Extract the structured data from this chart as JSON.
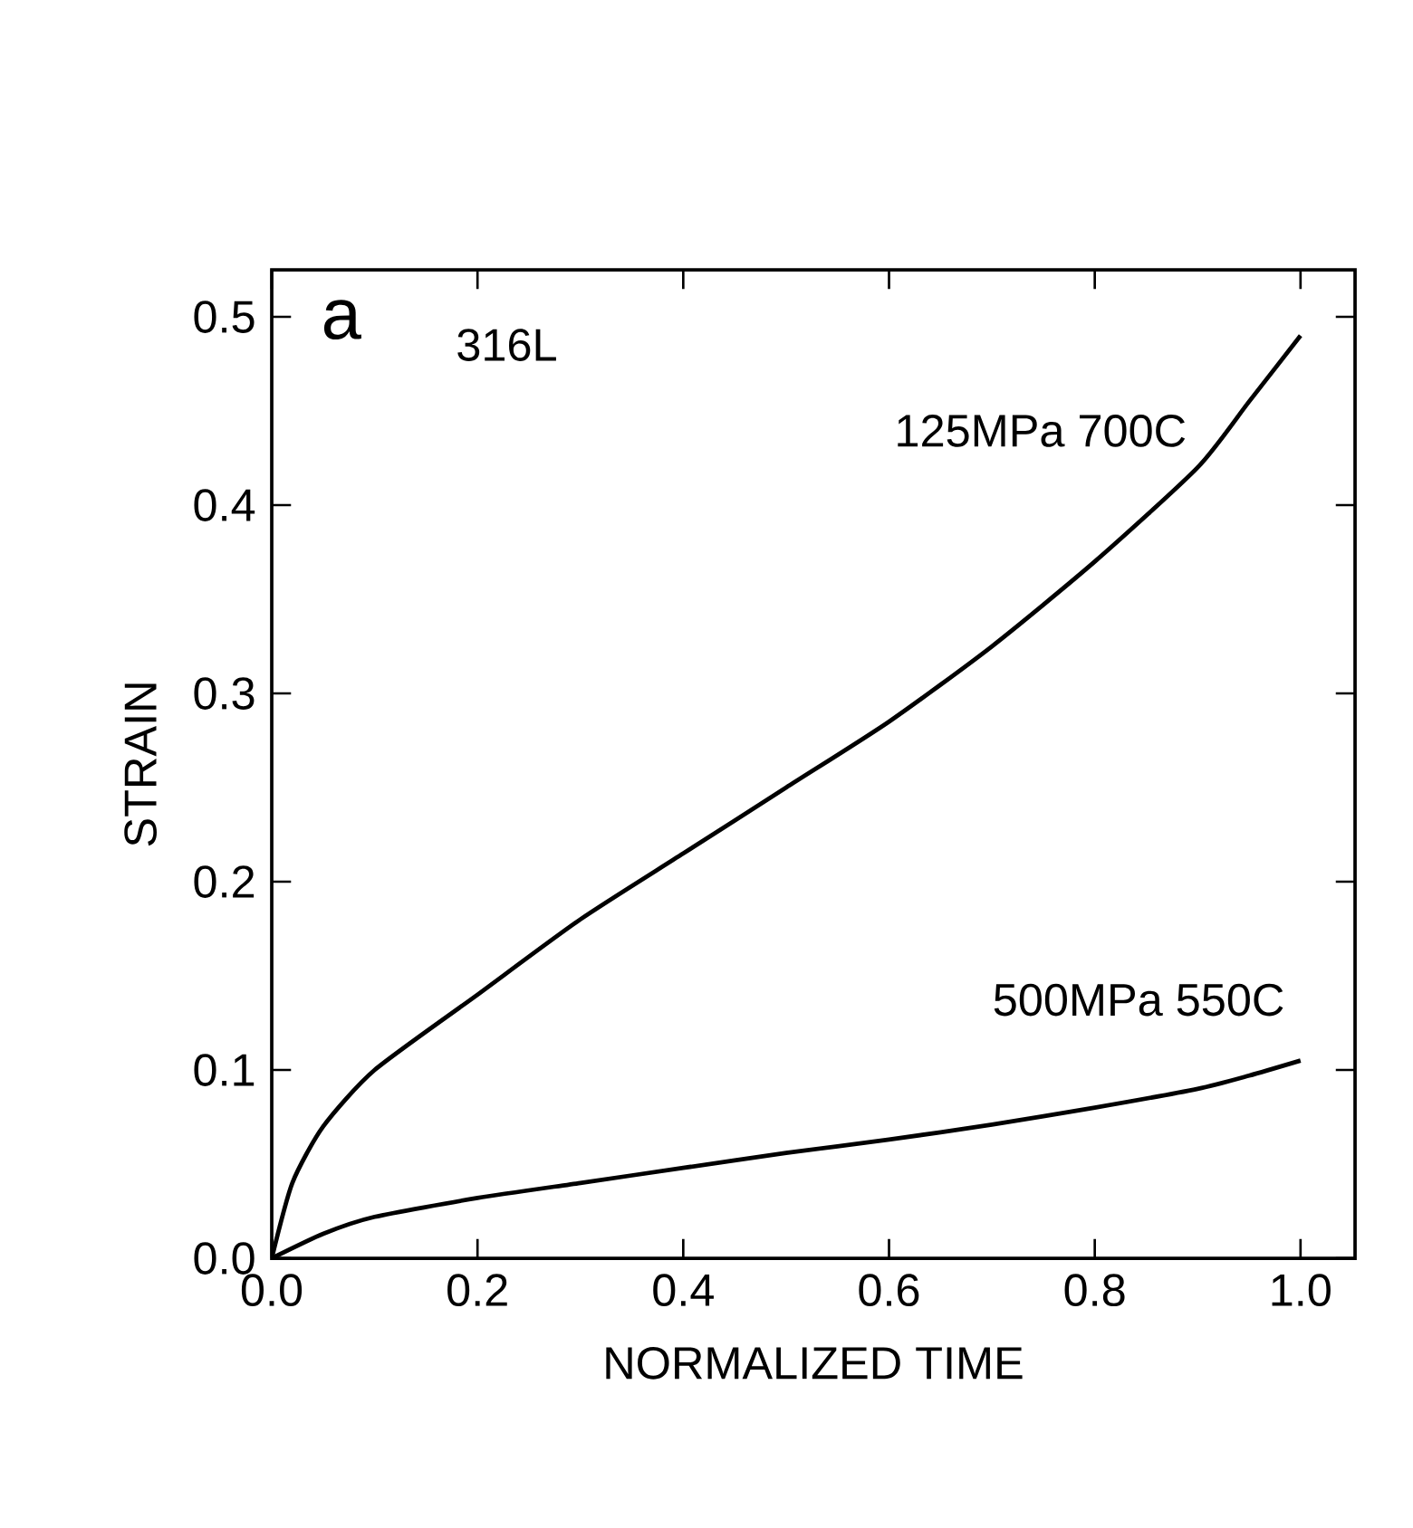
{
  "chart_data": {
    "type": "line",
    "xlabel": "NORMALIZED TIME",
    "ylabel": "STRAIN",
    "annotations": [
      "a",
      "316L"
    ],
    "xlim": [
      0,
      1.053
    ],
    "ylim": [
      0,
      0.525
    ],
    "xticks": [
      {
        "value": 0,
        "label": "0.0"
      },
      {
        "value": 0.2,
        "label": "0.2"
      },
      {
        "value": 0.4,
        "label": "0.4"
      },
      {
        "value": 0.6,
        "label": "0.6"
      },
      {
        "value": 0.8,
        "label": "0.8"
      },
      {
        "value": 1,
        "label": "1.0"
      }
    ],
    "yticks": [
      {
        "value": 0,
        "label": "0.0"
      },
      {
        "value": 0.1,
        "label": "0.1"
      },
      {
        "value": 0.2,
        "label": "0.2"
      },
      {
        "value": 0.3,
        "label": "0.3"
      },
      {
        "value": 0.4,
        "label": "0.4"
      },
      {
        "value": 0.5,
        "label": "0.5"
      }
    ],
    "grid": false,
    "legend": false,
    "marker": "none",
    "line_style": "solid",
    "series": [
      {
        "name": "125MPa 700C",
        "color": "#000000",
        "x": [
          0,
          0.02,
          0.05,
          0.1,
          0.2,
          0.3,
          0.4,
          0.5,
          0.6,
          0.7,
          0.8,
          0.9,
          0.95,
          1.0
        ],
        "values": [
          0,
          0.04,
          0.07,
          0.1,
          0.14,
          0.18,
          0.215,
          0.25,
          0.285,
          0.325,
          0.37,
          0.42,
          0.455,
          0.49
        ]
      },
      {
        "name": "500MPa 550C",
        "color": "#000000",
        "x": [
          0,
          0.05,
          0.1,
          0.2,
          0.3,
          0.4,
          0.5,
          0.6,
          0.7,
          0.8,
          0.9,
          0.95,
          1.0
        ],
        "values": [
          0,
          0.013,
          0.022,
          0.032,
          0.04,
          0.048,
          0.056,
          0.063,
          0.071,
          0.08,
          0.09,
          0.097,
          0.105
        ]
      }
    ]
  }
}
